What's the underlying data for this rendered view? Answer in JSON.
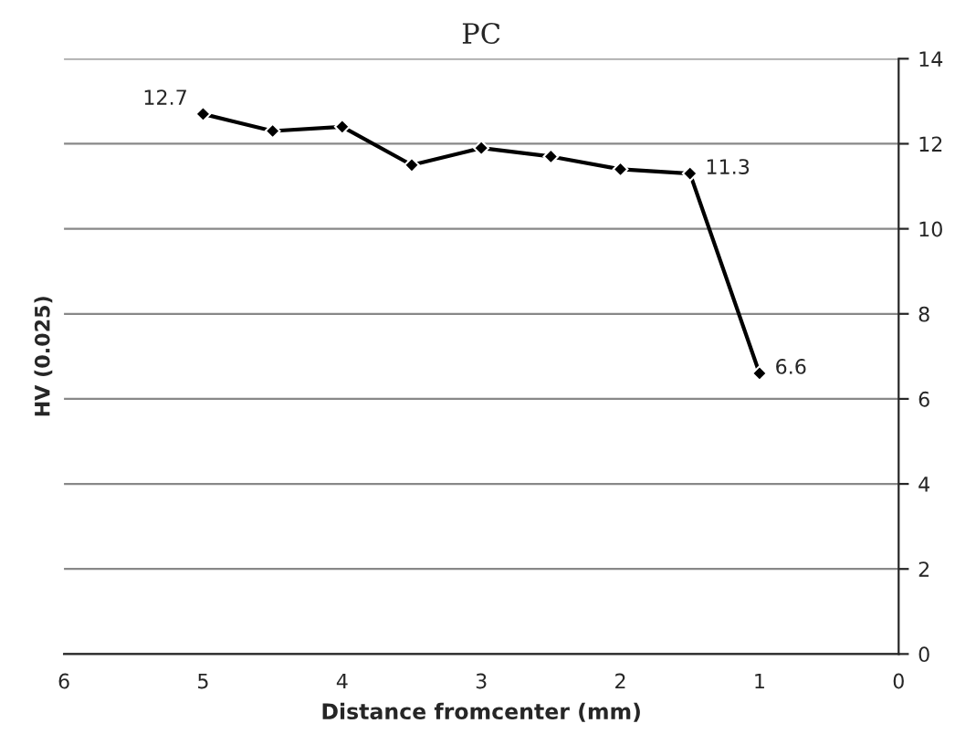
{
  "chart_data": {
    "type": "line",
    "title": "PC",
    "xlabel": "Distance fromcenter (mm)",
    "ylabel": "HV (0.025)",
    "x": [
      5,
      4.5,
      4,
      3.5,
      3,
      2.5,
      2,
      1.5,
      1
    ],
    "series": [
      {
        "color": "#000000",
        "values": [
          12.7,
          12.3,
          12.4,
          11.5,
          11.9,
          11.7,
          11.4,
          11.3,
          6.6
        ],
        "value_labels": [
          "12.7",
          null,
          null,
          null,
          null,
          null,
          null,
          "11.3",
          "6.6"
        ]
      }
    ],
    "xlim": [
      6,
      0
    ],
    "xticks": [
      6,
      5,
      4,
      3,
      2,
      1,
      0
    ],
    "ylim": [
      0,
      14
    ],
    "yticks": [
      0,
      2,
      4,
      6,
      8,
      10,
      12,
      14
    ],
    "grid": "y",
    "marker": "diamond",
    "line_style": "solid",
    "legend": false
  }
}
